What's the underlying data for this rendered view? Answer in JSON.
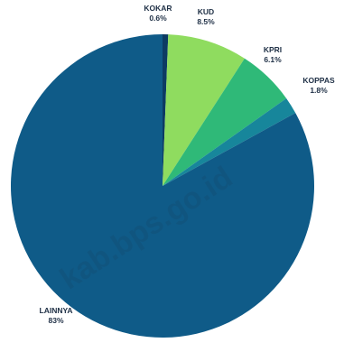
{
  "chart_data": {
    "type": "pie",
    "slices": [
      {
        "name": "KOKAR",
        "value": 0.6,
        "label": "0.6%",
        "color": "#0d3b63"
      },
      {
        "name": "KUD",
        "value": 8.5,
        "label": "8.5%",
        "color": "#8fdc5f"
      },
      {
        "name": "KPRI",
        "value": 6.1,
        "label": "6.1%",
        "color": "#2fb978"
      },
      {
        "name": "KOPPAS",
        "value": 1.8,
        "label": "1.8%",
        "color": "#17869b"
      },
      {
        "name": "LAINNYA",
        "value": 83,
        "label": "83%",
        "color": "#0f5b88"
      }
    ],
    "start_angle": "top",
    "direction": "clockwise"
  },
  "watermark": {
    "text": "kab.bps.go.id"
  }
}
